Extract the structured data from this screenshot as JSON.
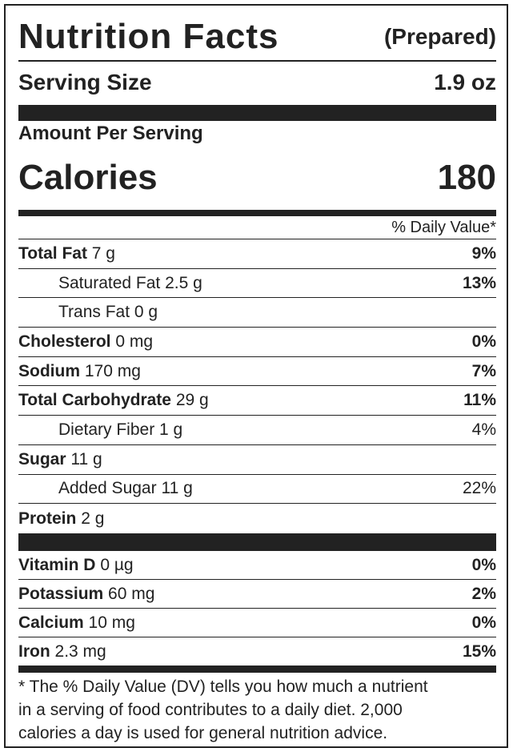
{
  "header": {
    "title": "Nutrition Facts",
    "qualifier": "(Prepared)"
  },
  "serving": {
    "label": "Serving Size",
    "value": "1.9 oz"
  },
  "amount_per_serving": "Amount Per Serving",
  "calories": {
    "label": "Calories",
    "value": "180"
  },
  "daily_value_header": "% Daily Value*",
  "nutrients": [
    {
      "name": "Total Fat",
      "amount": "7 g",
      "dv": "9%"
    },
    {
      "name": "Saturated Fat",
      "amount": "2.5 g",
      "dv": "13%",
      "sub": true
    },
    {
      "name": "Trans Fat",
      "amount": "0 g",
      "sub": true
    },
    {
      "name": "Cholesterol",
      "amount": "0 mg",
      "dv": "0%"
    },
    {
      "name": "Sodium",
      "amount": "170 mg",
      "dv": "7%"
    },
    {
      "name": "Total Carbohydrate",
      "amount": "29 g",
      "dv": "11%"
    },
    {
      "name": "Dietary Fiber",
      "amount": "1 g",
      "dv": "4%",
      "sub": true
    },
    {
      "name": "Sugar",
      "amount": "11 g"
    },
    {
      "name": "Added Sugar",
      "amount": "11 g",
      "dv": "22%",
      "sub": true
    },
    {
      "name": "Protein",
      "amount": "2 g"
    }
  ],
  "vitamins": [
    {
      "name": "Vitamin D",
      "amount": "0 µg",
      "dv": "0%"
    },
    {
      "name": "Potassium",
      "amount": "60 mg",
      "dv": "2%"
    },
    {
      "name": "Calcium",
      "amount": "10 mg",
      "dv": "0%"
    },
    {
      "name": "Iron",
      "amount": "2.3 mg",
      "dv": "15%"
    }
  ],
  "footnote": [
    "* The % Daily Value (DV) tells you how much a nutrient",
    "in a serving of food contributes to a daily diet. 2,000",
    "calories a day is used for general nutrition advice."
  ]
}
